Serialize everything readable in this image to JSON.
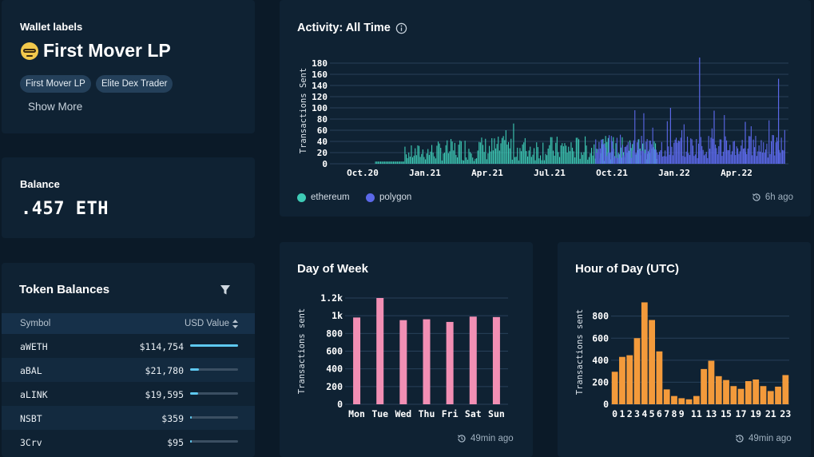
{
  "wallet": {
    "section_label": "Wallet labels",
    "title": "First Mover LP",
    "title_icon": "nerd-face-emoji",
    "pills": [
      "First Mover LP",
      "Elite Dex Trader"
    ],
    "show_more": "Show More"
  },
  "balance": {
    "label": "Balance",
    "value": ".457 ETH"
  },
  "tokens": {
    "title": "Token Balances",
    "columns": [
      "Symbol",
      "USD Value"
    ],
    "rows": [
      {
        "symbol": "aWETH",
        "value": "$114,754",
        "share": 1.0
      },
      {
        "symbol": "aBAL",
        "value": "$21,780",
        "share": 0.19
      },
      {
        "symbol": "aLINK",
        "value": "$19,595",
        "share": 0.17
      },
      {
        "symbol": "NSBT",
        "value": "$359",
        "share": 0.003
      },
      {
        "symbol": "3Crv",
        "value": "$95",
        "share": 0.001
      }
    ]
  },
  "activity": {
    "title": "Activity: All Time",
    "updated": "6h ago",
    "legend": [
      {
        "name": "ethereum",
        "color": "#3ecbb6"
      },
      {
        "name": "polygon",
        "color": "#5b68e8"
      }
    ]
  },
  "dow": {
    "title": "Day of Week",
    "updated": "49min ago"
  },
  "hour": {
    "title": "Hour of Day (UTC)",
    "updated": "49min ago"
  },
  "chart_data": [
    {
      "type": "bar",
      "title": "Activity: All Time",
      "ylabel": "Transactions Sent",
      "xlabel": "",
      "ylim": [
        0,
        190
      ],
      "yticks": [
        0,
        20,
        40,
        60,
        80,
        100,
        120,
        140,
        160,
        180
      ],
      "xticks": [
        "Oct.20",
        "Jan.21",
        "Apr.21",
        "Jul.21",
        "Oct.21",
        "Jan.22",
        "Apr.22"
      ],
      "series": [
        {
          "name": "ethereum",
          "color": "#3ecbb6",
          "period": "Sep.20 - Dec.21",
          "typical_range": [
            5,
            50
          ],
          "peaks": [
            55,
            70,
            68,
            60,
            72,
            58,
            65
          ]
        },
        {
          "name": "polygon",
          "color": "#5b68e8",
          "period": "Oct.21 - Jun.22",
          "typical_range": [
            10,
            70
          ],
          "peaks": [
            190,
            150,
            95,
            90,
            80
          ]
        }
      ]
    },
    {
      "type": "bar",
      "title": "Day of Week",
      "ylabel": "Transactions sent",
      "xlabel": "",
      "ylim": [
        0,
        1200
      ],
      "yticks": [
        0,
        200,
        400,
        600,
        800,
        1000,
        1200
      ],
      "ytick_labels": [
        "0",
        "200",
        "400",
        "600",
        "800",
        "1k",
        "1.2k"
      ],
      "categories": [
        "Mon",
        "Tue",
        "Wed",
        "Thu",
        "Fri",
        "Sat",
        "Sun"
      ],
      "values": [
        980,
        1200,
        950,
        960,
        930,
        990,
        985
      ],
      "color": "#f28fb4"
    },
    {
      "type": "bar",
      "title": "Hour of Day (UTC)",
      "ylabel": "Transactions sent",
      "xlabel": "",
      "ylim": [
        0,
        950
      ],
      "yticks": [
        0,
        200,
        400,
        600,
        800
      ],
      "xtick_labels": [
        "0",
        "1",
        "2",
        "3",
        "4",
        "5",
        "6",
        "7",
        "8",
        "9",
        "11",
        "13",
        "15",
        "17",
        "19",
        "21",
        "23"
      ],
      "categories": [
        "0",
        "1",
        "2",
        "3",
        "4",
        "5",
        "6",
        "7",
        "8",
        "9",
        "10",
        "11",
        "12",
        "13",
        "14",
        "15",
        "16",
        "17",
        "18",
        "19",
        "20",
        "21",
        "22",
        "23"
      ],
      "values": [
        295,
        430,
        445,
        600,
        925,
        765,
        480,
        135,
        75,
        55,
        45,
        75,
        320,
        395,
        255,
        220,
        165,
        140,
        210,
        225,
        165,
        120,
        160,
        265
      ],
      "color": "#f39a3b"
    }
  ]
}
